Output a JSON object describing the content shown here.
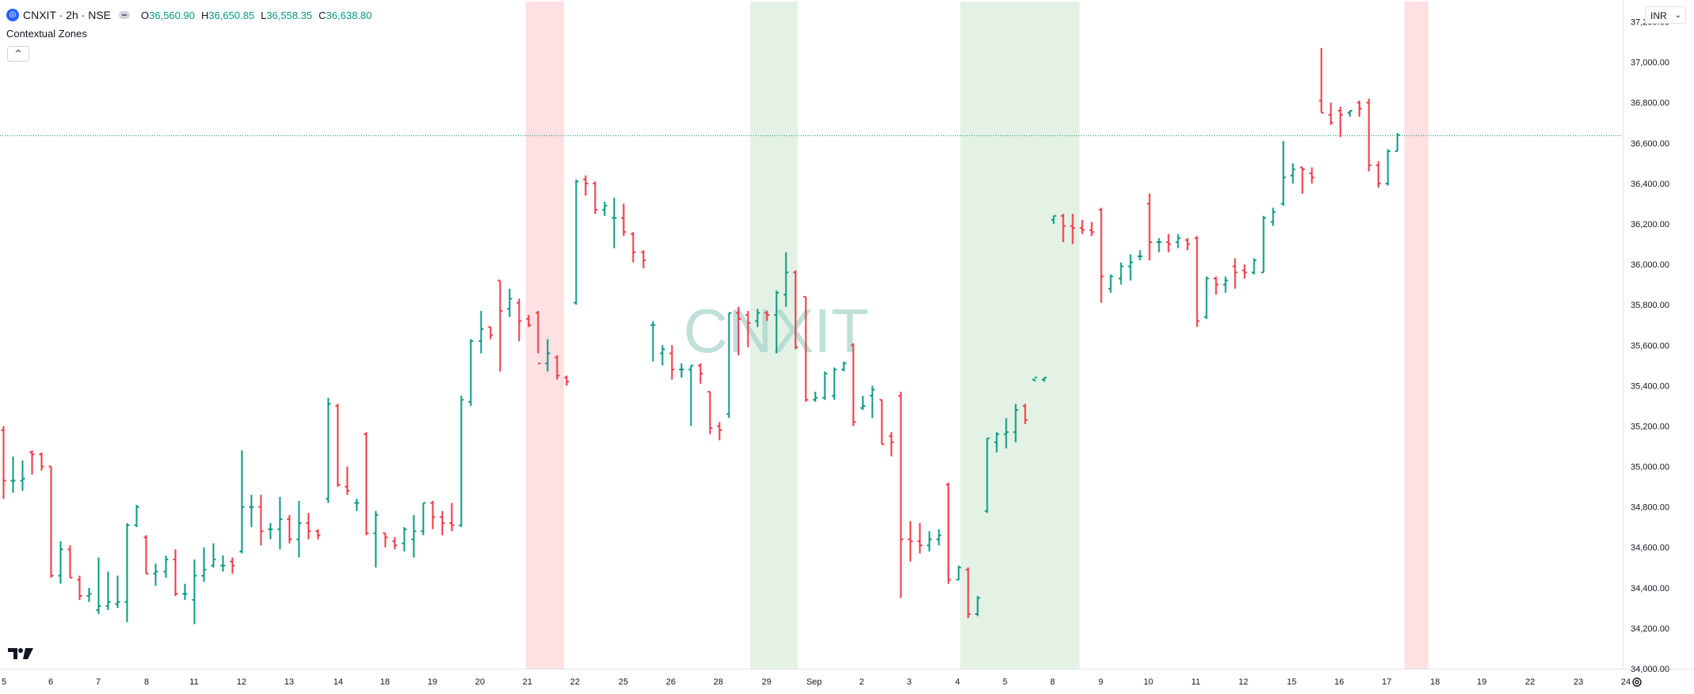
{
  "header": {
    "symbol_icon": "symbol-logo-icon",
    "symbol_title": "CNXIT · 2h · NSE",
    "ohlc": [
      {
        "k": "O",
        "v": "36,560.90"
      },
      {
        "k": "H",
        "v": "36,650.85"
      },
      {
        "k": "L",
        "v": "36,558.35"
      },
      {
        "k": "C",
        "v": "36,638.80"
      }
    ]
  },
  "indicator": {
    "name": "Contextual Zones",
    "collapse_icon": "chevron-up-icon"
  },
  "currency": {
    "label": "INR",
    "icon": "chevron-down-icon"
  },
  "colors": {
    "up": "#089981",
    "down": "#f23645",
    "zone_red": "#ffe0e3",
    "zone_green": "#e3f2e5",
    "watermark": "#a8d5cc"
  },
  "chart_data": {
    "type": "ohlc-bar",
    "watermark": "CNXIT",
    "ylim": [
      34000,
      37300
    ],
    "y_ticks": [
      "37,200.00",
      "37,000.00",
      "36,800.00",
      "36,600.00",
      "36,400.00",
      "36,200.00",
      "36,000.00",
      "35,800.00",
      "35,600.00",
      "35,400.00",
      "35,200.00",
      "35,000.00",
      "34,800.00",
      "34,600.00",
      "34,400.00",
      "34,200.00",
      "34,000.00"
    ],
    "x_ticks": [
      "5",
      "6",
      "7",
      "8",
      "11",
      "12",
      "13",
      "14",
      "18",
      "19",
      "20",
      "21",
      "22",
      "25",
      "26",
      "28",
      "29",
      "Sep",
      "2",
      "3",
      "4",
      "5",
      "8",
      "9",
      "10",
      "11",
      "12",
      "15",
      "16",
      "17",
      "18",
      "19",
      "22",
      "23",
      "24"
    ],
    "last_price": 36638.8,
    "zones": [
      {
        "color": "red",
        "from_bar": 110,
        "to_bar": 117
      },
      {
        "color": "green",
        "from_bar": 157,
        "to_bar": 166
      },
      {
        "color": "green",
        "from_bar": 201,
        "to_bar": 225
      },
      {
        "color": "red",
        "from_bar": 294,
        "to_bar": 298
      }
    ],
    "bars": [
      [
        0,
        35180,
        35200,
        34840,
        34930
      ],
      [
        2,
        34930,
        35050,
        34870,
        34930
      ],
      [
        4,
        34930,
        35030,
        34880,
        34940
      ],
      [
        6,
        35070,
        35080,
        34960,
        35060
      ],
      [
        8,
        35060,
        35070,
        34980,
        35000
      ],
      [
        10,
        35000,
        35000,
        34450,
        34460
      ],
      [
        12,
        34460,
        34630,
        34420,
        34590
      ],
      [
        14,
        34590,
        34610,
        34450,
        34450
      ],
      [
        16,
        34440,
        34460,
        34340,
        34360
      ],
      [
        18,
        34360,
        34400,
        34330,
        34370
      ],
      [
        20,
        34290,
        34550,
        34270,
        34310
      ],
      [
        22,
        34310,
        34480,
        34290,
        34330
      ],
      [
        24,
        34320,
        34460,
        34300,
        34330
      ],
      [
        26,
        34330,
        34720,
        34230,
        34710
      ],
      [
        28,
        34710,
        34810,
        34700,
        34800
      ],
      [
        30,
        34650,
        34660,
        34470,
        34470
      ],
      [
        32,
        34470,
        34520,
        34410,
        34480
      ],
      [
        34,
        34480,
        34560,
        34450,
        34540
      ],
      [
        36,
        34540,
        34590,
        34360,
        34370
      ],
      [
        38,
        34370,
        34420,
        34340,
        34370
      ],
      [
        40,
        34340,
        34540,
        34220,
        34460
      ],
      [
        42,
        34460,
        34600,
        34430,
        34490
      ],
      [
        44,
        34510,
        34620,
        34500,
        34540
      ],
      [
        46,
        34510,
        34560,
        34480,
        34510
      ],
      [
        48,
        34530,
        34550,
        34470,
        34510
      ],
      [
        50,
        34580,
        35080,
        34570,
        34800
      ],
      [
        52,
        34800,
        34860,
        34700,
        34800
      ],
      [
        54,
        34800,
        34860,
        34610,
        34680
      ],
      [
        56,
        34690,
        34720,
        34640,
        34690
      ],
      [
        58,
        34690,
        34850,
        34590,
        34740
      ],
      [
        60,
        34740,
        34760,
        34620,
        34640
      ],
      [
        62,
        34640,
        34830,
        34550,
        34720
      ],
      [
        64,
        34720,
        34770,
        34640,
        34680
      ],
      [
        66,
        34680,
        34690,
        34640,
        34660
      ],
      [
        68,
        34840,
        35340,
        34820,
        35310
      ],
      [
        70,
        35300,
        35310,
        34900,
        34910
      ],
      [
        72,
        34900,
        35000,
        34860,
        34880
      ],
      [
        74,
        34820,
        34840,
        34780,
        34820
      ],
      [
        76,
        35160,
        35170,
        34660,
        34670
      ],
      [
        78,
        34670,
        34780,
        34500,
        34760
      ],
      [
        80,
        34670,
        34670,
        34600,
        34650
      ],
      [
        82,
        34630,
        34650,
        34590,
        34610
      ],
      [
        84,
        34620,
        34700,
        34580,
        34690
      ],
      [
        86,
        34640,
        34760,
        34550,
        34680
      ],
      [
        88,
        34680,
        34820,
        34660,
        34820
      ],
      [
        90,
        34820,
        34830,
        34690,
        34750
      ],
      [
        92,
        34750,
        34780,
        34660,
        34720
      ],
      [
        94,
        34720,
        34820,
        34680,
        34710
      ],
      [
        96,
        34710,
        35350,
        34700,
        35330
      ],
      [
        98,
        35320,
        35630,
        35300,
        35620
      ],
      [
        100,
        35620,
        35770,
        35560,
        35680
      ],
      [
        102,
        35690,
        35690,
        35630,
        35650
      ],
      [
        104,
        35920,
        35920,
        35470,
        35770
      ],
      [
        106,
        35780,
        35880,
        35740,
        35830
      ],
      [
        108,
        35810,
        35830,
        35620,
        35720
      ],
      [
        110,
        35730,
        35750,
        35690,
        35700
      ],
      [
        112,
        35760,
        35770,
        35560,
        35510
      ],
      [
        114,
        35510,
        35630,
        35470,
        35560
      ],
      [
        116,
        35540,
        35550,
        35430,
        35450
      ],
      [
        118,
        35440,
        35450,
        35400,
        35420
      ],
      [
        120,
        35810,
        36420,
        35800,
        36410
      ],
      [
        122,
        36420,
        36440,
        36340,
        36400
      ],
      [
        124,
        36400,
        36410,
        36250,
        36270
      ],
      [
        126,
        36270,
        36310,
        36240,
        36290
      ],
      [
        128,
        36230,
        36330,
        36080,
        36230
      ],
      [
        130,
        36230,
        36300,
        36140,
        36160
      ],
      [
        132,
        36150,
        36160,
        36010,
        36060
      ],
      [
        134,
        36060,
        36070,
        35980,
        36020
      ],
      [
        136,
        35700,
        35720,
        35520,
        35700
      ],
      [
        138,
        35560,
        35600,
        35500,
        35580
      ],
      [
        140,
        35560,
        35600,
        35430,
        35480
      ],
      [
        142,
        35480,
        35510,
        35440,
        35480
      ],
      [
        144,
        35480,
        35500,
        35200,
        35500
      ],
      [
        146,
        35500,
        35510,
        35410,
        35460
      ],
      [
        148,
        35370,
        35370,
        35160,
        35190
      ],
      [
        150,
        35200,
        35220,
        35130,
        35180
      ],
      [
        152,
        35260,
        35760,
        35240,
        35760
      ],
      [
        154,
        35760,
        35790,
        35550,
        35730
      ],
      [
        156,
        35750,
        35770,
        35590,
        35710
      ],
      [
        158,
        35720,
        35780,
        35690,
        35760
      ],
      [
        160,
        35760,
        35770,
        35720,
        35750
      ],
      [
        162,
        35750,
        35870,
        35560,
        35860
      ],
      [
        164,
        35850,
        36060,
        35790,
        35960
      ],
      [
        166,
        35960,
        35970,
        35580,
        35590
      ],
      [
        168,
        35840,
        35840,
        35320,
        35330
      ],
      [
        170,
        35330,
        35370,
        35320,
        35340
      ],
      [
        172,
        35340,
        35470,
        35330,
        35460
      ],
      [
        174,
        35350,
        35490,
        35330,
        35480
      ],
      [
        176,
        35480,
        35520,
        35470,
        35510
      ],
      [
        178,
        35600,
        35610,
        35200,
        35220
      ],
      [
        180,
        35290,
        35350,
        35280,
        35300
      ],
      [
        182,
        35350,
        35400,
        35240,
        35380
      ],
      [
        184,
        35330,
        35330,
        35110,
        35110
      ],
      [
        186,
        35150,
        35170,
        35050,
        35120
      ],
      [
        188,
        35350,
        35370,
        34350,
        34640
      ],
      [
        190,
        34640,
        34730,
        34530,
        34630
      ],
      [
        192,
        34630,
        34720,
        34570,
        34610
      ],
      [
        194,
        34610,
        34680,
        34580,
        34640
      ],
      [
        196,
        34640,
        34690,
        34610,
        34660
      ],
      [
        198,
        34910,
        34920,
        34420,
        34440
      ],
      [
        200,
        34440,
        34510,
        34440,
        34500
      ],
      [
        202,
        34490,
        34500,
        34250,
        34270
      ],
      [
        204,
        34270,
        34360,
        34260,
        34350
      ],
      [
        206,
        34780,
        35140,
        34770,
        35140
      ],
      [
        208,
        35120,
        35170,
        35070,
        35160
      ],
      [
        210,
        35160,
        35240,
        35090,
        35170
      ],
      [
        212,
        35170,
        35310,
        35120,
        35280
      ],
      [
        214,
        35300,
        35310,
        35210,
        35230
      ],
      [
        216,
        35430,
        35430,
        35420,
        35440
      ],
      [
        218,
        35430,
        35440,
        35420,
        35440
      ],
      [
        220,
        36220,
        36240,
        36200,
        36240
      ],
      [
        222,
        36240,
        36250,
        36110,
        36190
      ],
      [
        224,
        36190,
        36250,
        36100,
        36180
      ],
      [
        226,
        36180,
        36220,
        36150,
        36170
      ],
      [
        228,
        36170,
        36210,
        36140,
        36160
      ],
      [
        230,
        36270,
        36280,
        35810,
        35940
      ],
      [
        232,
        35880,
        35950,
        35860,
        35940
      ],
      [
        234,
        35930,
        36010,
        35900,
        35990
      ],
      [
        236,
        35990,
        36050,
        35920,
        36010
      ],
      [
        238,
        36040,
        36070,
        36020,
        36040
      ],
      [
        240,
        36300,
        36350,
        36020,
        36110
      ],
      [
        242,
        36110,
        36130,
        36060,
        36110
      ],
      [
        244,
        36110,
        36150,
        36060,
        36100
      ],
      [
        246,
        36110,
        36150,
        36080,
        36130
      ],
      [
        248,
        36120,
        36130,
        36070,
        36100
      ],
      [
        250,
        36130,
        36140,
        35690,
        35720
      ],
      [
        252,
        35740,
        35940,
        35730,
        35930
      ],
      [
        254,
        35930,
        35940,
        35850,
        35900
      ],
      [
        256,
        35900,
        35940,
        35860,
        35920
      ],
      [
        258,
        35990,
        36030,
        35880,
        35960
      ],
      [
        260,
        35970,
        36000,
        35930,
        35960
      ],
      [
        262,
        35960,
        36030,
        35950,
        36020
      ],
      [
        264,
        35960,
        36240,
        35960,
        36230
      ],
      [
        266,
        36210,
        36280,
        36190,
        36260
      ],
      [
        268,
        36300,
        36610,
        36290,
        36430
      ],
      [
        270,
        36440,
        36500,
        36400,
        36470
      ],
      [
        272,
        36480,
        36480,
        36350,
        36470
      ],
      [
        274,
        36450,
        36480,
        36400,
        36430
      ],
      [
        276,
        36810,
        37070,
        36750,
        36750
      ],
      [
        278,
        36740,
        36800,
        36690,
        36700
      ],
      [
        280,
        36760,
        36780,
        36630,
        36740
      ],
      [
        282,
        36750,
        36760,
        36730,
        36760
      ],
      [
        284,
        36800,
        36810,
        36730,
        36770
      ],
      [
        286,
        36800,
        36820,
        36460,
        36490
      ],
      [
        288,
        36490,
        36510,
        36380,
        36400
      ],
      [
        290,
        36400,
        36570,
        36390,
        36560
      ],
      [
        292,
        36560,
        36650,
        36560,
        36640
      ]
    ]
  }
}
